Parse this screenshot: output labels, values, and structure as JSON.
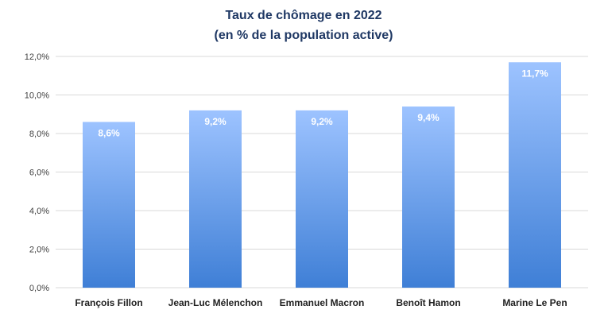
{
  "chart_data": {
    "type": "bar",
    "title_lines": [
      "Taux de chômage en 2022",
      "(en % de la population active)"
    ],
    "categories": [
      "François Fillon",
      "Jean-Luc Mélenchon",
      "Emmanuel Macron",
      "Benoît Hamon",
      "Marine Le Pen"
    ],
    "values": [
      8.6,
      9.2,
      9.2,
      9.4,
      11.7
    ],
    "value_labels": [
      "8,6%",
      "9,2%",
      "9,2%",
      "9,4%",
      "11,7%"
    ],
    "y_ticks": [
      0,
      2,
      4,
      6,
      8,
      10,
      12
    ],
    "y_tick_labels": [
      "0,0%",
      "2,0%",
      "4,0%",
      "6,0%",
      "8,0%",
      "10,0%",
      "12,0%"
    ],
    "ylim": [
      0,
      12
    ],
    "grid": true,
    "legend": "none",
    "colors": {
      "bar_top": "#9dc3ff",
      "bar_bottom": "#3f7fd6",
      "title": "#1f3864"
    }
  }
}
